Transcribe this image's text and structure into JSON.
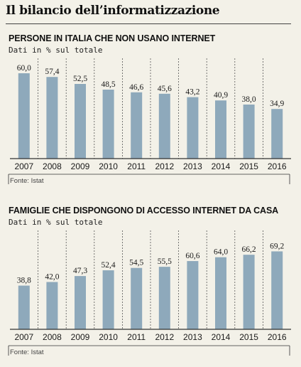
{
  "title": "Il bilancio dell’informatizzazione",
  "colors": {
    "bar": "#8ea9bb",
    "background": "#f3f1e8",
    "axis": "#333333",
    "gridline": "#555555"
  },
  "chart_data": [
    {
      "type": "bar",
      "title": "PERSONE IN ITALIA CHE NON USANO INTERNET",
      "subtitle": "Dati in % sul totale",
      "categories": [
        "2007",
        "2008",
        "2009",
        "2010",
        "2011",
        "2012",
        "2013",
        "2014",
        "2015",
        "2016"
      ],
      "values": [
        60.0,
        57.4,
        52.5,
        48.5,
        46.6,
        45.6,
        43.2,
        40.9,
        38.0,
        34.9
      ],
      "labels": [
        "60,0",
        "57,4",
        "52,5",
        "48,5",
        "46,6",
        "45,6",
        "43,2",
        "40,9",
        "38,0",
        "34,9"
      ],
      "ylim": [
        0,
        62
      ],
      "grid": "vertical-dashed",
      "source": "Fonte: Istat"
    },
    {
      "type": "bar",
      "title": "FAMIGLIE CHE DISPONGONO DI ACCESSO INTERNET DA CASA",
      "subtitle": "Dati in % sul totale",
      "categories": [
        "2007",
        "2008",
        "2009",
        "2010",
        "2011",
        "2012",
        "2013",
        "2014",
        "2015",
        "2016"
      ],
      "values": [
        38.8,
        42.0,
        47.3,
        52.4,
        54.5,
        55.5,
        60.6,
        64.0,
        66.2,
        69.2
      ],
      "labels": [
        "38,8",
        "42,0",
        "47,3",
        "52,4",
        "54,5",
        "55,5",
        "60,6",
        "64,0",
        "66,2",
        "69,2"
      ],
      "ylim": [
        0,
        72
      ],
      "grid": "vertical-dashed",
      "source": "Fonte: Istat"
    }
  ]
}
